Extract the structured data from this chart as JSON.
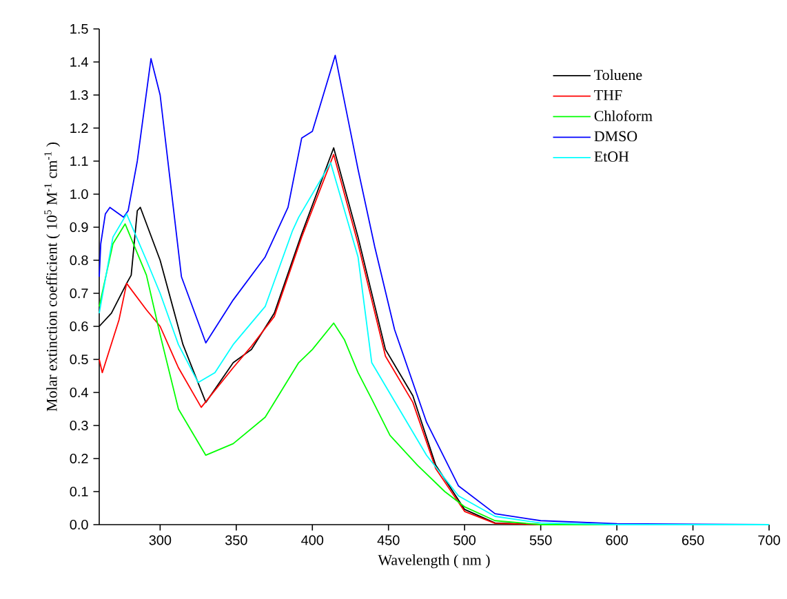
{
  "chart_data": {
    "type": "line",
    "xlabel": "Wavelength ( nm )",
    "ylabel": "Molar extinction coefficient ( 10$^{5}$ M$^{-1}$ cm$^{-1}$ )",
    "xlim": [
      260,
      700
    ],
    "ylim": [
      0,
      1.5
    ],
    "xticks": [
      300,
      350,
      400,
      450,
      500,
      550,
      600,
      650,
      700
    ],
    "yticks": [
      {
        "value": 0,
        "label": "0.0"
      },
      {
        "value": 0.1,
        "label": "0.1"
      },
      {
        "value": 0.2,
        "label": "0.2"
      },
      {
        "value": 0.3,
        "label": "0.3"
      },
      {
        "value": 0.4,
        "label": "0.4"
      },
      {
        "value": 0.5,
        "label": "0.5"
      },
      {
        "value": 0.6,
        "label": "0.6"
      },
      {
        "value": 0.7,
        "label": "0.7"
      },
      {
        "value": 0.8,
        "label": "0.8"
      },
      {
        "value": 0.9,
        "label": "0.9"
      },
      {
        "value": 1.0,
        "label": "1.0"
      },
      {
        "value": 1.1,
        "label": "1.1"
      },
      {
        "value": 1.2,
        "label": "1.2"
      },
      {
        "value": 1.3,
        "label": "1.3"
      },
      {
        "value": 1.4,
        "label": "1.4"
      },
      {
        "value": 1.5,
        "label": "1.5"
      }
    ],
    "grid": false,
    "legend": "top right",
    "marker": "none",
    "line_style": "solid",
    "series": [
      {
        "name": "Toluene",
        "color": "#000000",
        "x": [
          260,
          268,
          278,
          281,
          285,
          287,
          300,
          315,
          330,
          348,
          360,
          375,
          393,
          414,
          430,
          448,
          466,
          481,
          500,
          520,
          550,
          600,
          700
        ],
        "values": [
          0.6,
          0.64,
          0.73,
          0.755,
          0.95,
          0.96,
          0.8,
          0.545,
          0.37,
          0.49,
          0.53,
          0.64,
          0.88,
          1.14,
          0.87,
          0.53,
          0.39,
          0.18,
          0.046,
          0.005,
          0.0,
          0.0,
          0.0
        ]
      },
      {
        "name": "THF",
        "color": "#ff0000",
        "x": [
          260,
          262,
          273,
          278,
          291,
          300,
          312,
          327,
          348,
          360,
          375,
          393,
          414,
          430,
          448,
          466,
          481,
          500,
          520,
          550,
          600,
          700
        ],
        "values": [
          0.5,
          0.46,
          0.62,
          0.73,
          0.65,
          0.6,
          0.475,
          0.355,
          0.475,
          0.54,
          0.63,
          0.87,
          1.12,
          0.85,
          0.51,
          0.37,
          0.17,
          0.04,
          0.004,
          0.0,
          0.0,
          0.0
        ]
      },
      {
        "name": "Chloform",
        "color": "#00ff00",
        "x": [
          260,
          269,
          277,
          291,
          300,
          312,
          330,
          348,
          369,
          391,
          400,
          414,
          421,
          430,
          439,
          451,
          469,
          487,
          500,
          520,
          550,
          600,
          700
        ],
        "values": [
          0.66,
          0.85,
          0.91,
          0.755,
          0.575,
          0.35,
          0.21,
          0.245,
          0.325,
          0.49,
          0.53,
          0.61,
          0.56,
          0.46,
          0.38,
          0.27,
          0.18,
          0.1,
          0.054,
          0.012,
          0.0,
          0.0,
          0.0
        ]
      },
      {
        "name": "DMSO",
        "color": "#0000ff",
        "x": [
          260,
          261,
          264,
          267,
          270,
          276,
          279,
          285,
          294,
          300,
          314,
          330,
          348,
          369,
          384,
          393,
          400,
          415,
          430,
          441,
          454,
          475,
          496,
          520,
          550,
          600,
          700
        ],
        "values": [
          0.75,
          0.85,
          0.94,
          0.96,
          0.95,
          0.93,
          0.95,
          1.1,
          1.41,
          1.3,
          0.75,
          0.55,
          0.68,
          0.81,
          0.96,
          1.17,
          1.19,
          1.42,
          1.075,
          0.84,
          0.59,
          0.31,
          0.117,
          0.033,
          0.012,
          0.003,
          0.0
        ]
      },
      {
        "name": "EtOH",
        "color": "#00ffff",
        "x": [
          260,
          269,
          278,
          291,
          300,
          312,
          325,
          336,
          348,
          369,
          387,
          391,
          412,
          430,
          439,
          457,
          475,
          496,
          520,
          550,
          600,
          700
        ],
        "values": [
          0.64,
          0.87,
          0.94,
          0.8,
          0.7,
          0.545,
          0.43,
          0.46,
          0.545,
          0.66,
          0.89,
          0.93,
          1.095,
          0.81,
          0.49,
          0.35,
          0.21,
          0.087,
          0.025,
          0.005,
          0.0,
          0.0
        ]
      }
    ]
  }
}
